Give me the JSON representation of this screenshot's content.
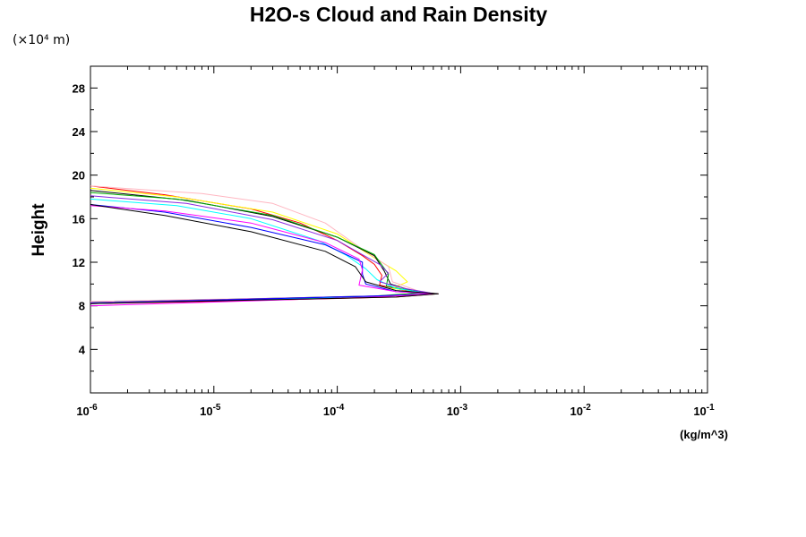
{
  "chart_data": {
    "type": "line",
    "title": "H2O-s Cloud and Rain Density",
    "ylabel": "Height",
    "y_scale_label": "(×10⁴ m)",
    "xlabel": "(kg/m^3)",
    "x_scale": "log",
    "xlim": [
      1e-06,
      0.1
    ],
    "ylim": [
      0,
      30
    ],
    "x_ticks": [
      {
        "value": 1e-06,
        "base": "10",
        "exp": "-6"
      },
      {
        "value": 1e-05,
        "base": "10",
        "exp": "-5"
      },
      {
        "value": 0.0001,
        "base": "10",
        "exp": "-4"
      },
      {
        "value": 0.001,
        "base": "10",
        "exp": "-3"
      },
      {
        "value": 0.01,
        "base": "10",
        "exp": "-2"
      },
      {
        "value": 0.1,
        "base": "10",
        "exp": "-1"
      }
    ],
    "y_ticks": [
      "4",
      "8",
      "12",
      "16",
      "20",
      "24",
      "28"
    ],
    "grid": false,
    "legend": "none",
    "series": [
      {
        "color": "#ff0000",
        "points": [
          [
            1e-06,
            19.0
          ],
          [
            4e-06,
            18.2
          ],
          [
            2e-05,
            16.9
          ],
          [
            5e-05,
            15.6
          ],
          [
            0.0001,
            14.0
          ],
          [
            0.00016,
            12.6
          ],
          [
            0.0002,
            11.8
          ],
          [
            0.00023,
            10.8
          ],
          [
            0.00022,
            9.9
          ],
          [
            0.0004,
            9.3
          ],
          [
            0.00065,
            9.1
          ],
          [
            0.0003,
            8.8
          ],
          [
            1e-05,
            8.4
          ],
          [
            1e-06,
            8.2
          ]
        ]
      },
      {
        "color": "#ffff00",
        "points": [
          [
            1e-06,
            18.8
          ],
          [
            5e-06,
            18.0
          ],
          [
            3e-05,
            16.6
          ],
          [
            0.0001,
            14.6
          ],
          [
            0.0002,
            12.4
          ],
          [
            0.0003,
            11.2
          ],
          [
            0.00037,
            10.2
          ],
          [
            0.00028,
            9.6
          ],
          [
            0.00055,
            9.2
          ],
          [
            0.0003,
            8.9
          ],
          [
            1e-05,
            8.5
          ],
          [
            1e-06,
            8.3
          ]
        ]
      },
      {
        "color": "#ffb6c1",
        "points": [
          [
            1e-06,
            19.0
          ],
          [
            8e-06,
            18.3
          ],
          [
            3e-05,
            17.4
          ],
          [
            8e-05,
            15.6
          ],
          [
            0.00016,
            13.2
          ],
          [
            0.00026,
            11.6
          ],
          [
            0.00028,
            10.2
          ],
          [
            0.0005,
            9.2
          ],
          [
            0.0003,
            8.9
          ],
          [
            1e-06,
            8.4
          ]
        ]
      },
      {
        "color": "#000000",
        "points": [
          [
            1e-06,
            18.6
          ],
          [
            6e-06,
            17.7
          ],
          [
            3e-05,
            16.2
          ],
          [
            0.0001,
            14.3
          ],
          [
            0.0002,
            12.6
          ],
          [
            0.00024,
            11.2
          ],
          [
            0.00027,
            10.0
          ],
          [
            0.0004,
            9.4
          ],
          [
            0.00062,
            9.1
          ],
          [
            0.00015,
            8.8
          ],
          [
            1e-06,
            8.3
          ]
        ]
      },
      {
        "color": "#00aa00",
        "points": [
          [
            1e-06,
            18.4
          ],
          [
            5e-06,
            17.8
          ],
          [
            3e-05,
            16.3
          ],
          [
            0.0001,
            14.3
          ],
          [
            0.0002,
            12.7
          ],
          [
            0.00026,
            10.9
          ],
          [
            0.00025,
            9.8
          ],
          [
            0.0005,
            9.2
          ],
          [
            0.0002,
            8.9
          ],
          [
            1e-06,
            8.3
          ]
        ]
      },
      {
        "color": "#00ffff",
        "points": [
          [
            1e-06,
            17.8
          ],
          [
            5e-06,
            17.2
          ],
          [
            2e-05,
            16.0
          ],
          [
            7e-05,
            14.0
          ],
          [
            0.00012,
            12.6
          ],
          [
            0.00017,
            11.4
          ],
          [
            0.00021,
            10.4
          ],
          [
            0.0003,
            9.6
          ],
          [
            0.00058,
            9.1
          ],
          [
            0.0002,
            8.8
          ],
          [
            1e-06,
            8.3
          ]
        ]
      },
      {
        "color": "#8a2be2",
        "points": [
          [
            1e-06,
            18.1
          ],
          [
            6e-06,
            17.4
          ],
          [
            3e-05,
            15.9
          ],
          [
            0.0001,
            14.0
          ],
          [
            0.00022,
            11.8
          ],
          [
            0.00026,
            11.0
          ],
          [
            0.00022,
            10.2
          ],
          [
            0.00035,
            9.6
          ],
          [
            0.00062,
            9.1
          ],
          [
            0.0002,
            8.9
          ],
          [
            1e-06,
            8.3
          ]
        ]
      },
      {
        "color": "#0000ff",
        "points": [
          [
            1e-06,
            17.3
          ],
          [
            4e-06,
            16.6
          ],
          [
            2e-05,
            15.2
          ],
          [
            8e-05,
            13.6
          ],
          [
            0.00016,
            12.0
          ],
          [
            0.00016,
            10.9
          ],
          [
            0.00017,
            10.0
          ],
          [
            0.0003,
            9.3
          ],
          [
            0.00064,
            9.1
          ],
          [
            0.0002,
            8.9
          ],
          [
            1e-06,
            8.2
          ]
        ]
      },
      {
        "color": "#ff00ff",
        "points": [
          [
            1e-06,
            17.2
          ],
          [
            4e-06,
            16.7
          ],
          [
            2e-05,
            15.6
          ],
          [
            8e-05,
            13.8
          ],
          [
            0.00015,
            12.3
          ],
          [
            0.00016,
            11.3
          ],
          [
            0.00015,
            9.9
          ],
          [
            0.0003,
            9.3
          ],
          [
            0.00063,
            9.1
          ],
          [
            0.0002,
            8.8
          ],
          [
            1e-06,
            8.0
          ]
        ]
      },
      {
        "color": "#000000",
        "points": [
          [
            1e-06,
            17.3
          ],
          [
            4e-06,
            16.3
          ],
          [
            2e-05,
            14.8
          ],
          [
            8e-05,
            13.0
          ],
          [
            0.00014,
            11.6
          ],
          [
            0.00017,
            10.2
          ],
          [
            0.0003,
            9.4
          ],
          [
            0.00066,
            9.1
          ],
          [
            0.0003,
            8.8
          ],
          [
            1e-06,
            8.2
          ]
        ]
      }
    ]
  }
}
